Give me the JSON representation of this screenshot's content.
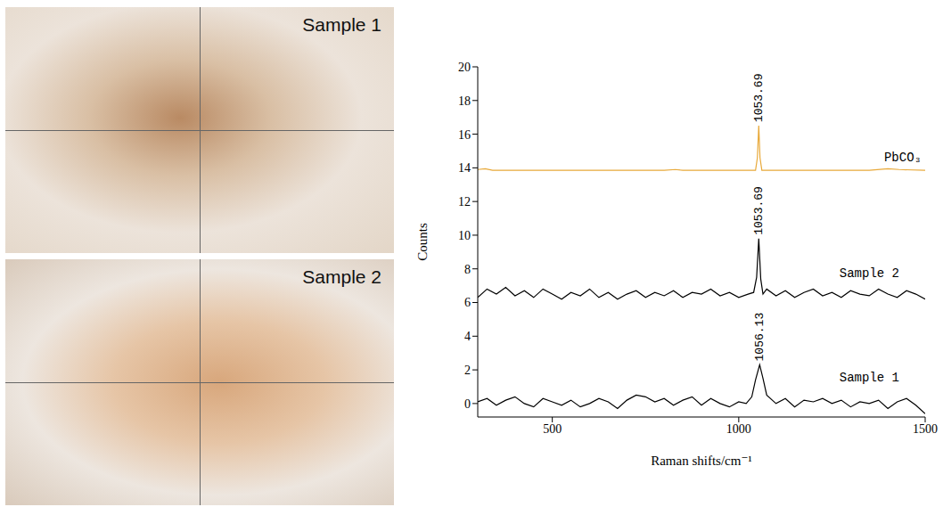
{
  "chart_data": {
    "type": "line",
    "x_label": "Raman shifts/cm⁻¹",
    "y_label": "Counts",
    "xlim": [
      300,
      1500
    ],
    "xticks": [
      500,
      1000,
      1500
    ],
    "ylim": [
      -0.8,
      20
    ],
    "yticks": [
      0,
      2,
      4,
      6,
      8,
      10,
      12,
      14,
      16,
      18,
      20
    ],
    "grid": false,
    "series": [
      {
        "name": "PbCO₃",
        "color": "#e8a93a",
        "label_x": 1390,
        "label_y": 14.6,
        "x": [
          300,
          320,
          340,
          400,
          500,
          600,
          700,
          800,
          830,
          850,
          1000,
          1045,
          1050,
          1053.69,
          1057,
          1062,
          1200,
          1350,
          1400,
          1430,
          1500
        ],
        "values": [
          13.9,
          13.95,
          13.85,
          13.85,
          13.85,
          13.85,
          13.85,
          13.85,
          13.9,
          13.85,
          13.85,
          13.85,
          14.6,
          16.5,
          14.6,
          13.85,
          13.85,
          13.85,
          13.95,
          13.9,
          13.85
        ]
      },
      {
        "name": "Sample 2",
        "color": "#000000",
        "label_x": 1270,
        "label_y": 7.7,
        "x": [
          300,
          325,
          350,
          375,
          400,
          425,
          450,
          475,
          500,
          525,
          550,
          575,
          600,
          625,
          650,
          675,
          700,
          725,
          750,
          775,
          800,
          825,
          850,
          875,
          900,
          925,
          950,
          975,
          1000,
          1025,
          1040,
          1048,
          1053.69,
          1059,
          1065,
          1075,
          1100,
          1125,
          1150,
          1175,
          1200,
          1225,
          1250,
          1275,
          1300,
          1325,
          1350,
          1375,
          1400,
          1425,
          1450,
          1475,
          1500
        ],
        "values": [
          6.3,
          6.8,
          6.5,
          6.9,
          6.4,
          6.7,
          6.3,
          6.8,
          6.5,
          6.2,
          6.6,
          6.4,
          6.8,
          6.3,
          6.6,
          6.2,
          6.5,
          6.7,
          6.3,
          6.6,
          6.4,
          6.7,
          6.3,
          6.6,
          6.5,
          6.8,
          6.4,
          6.6,
          6.3,
          6.5,
          6.6,
          7.5,
          9.8,
          7.4,
          6.5,
          6.8,
          6.4,
          6.7,
          6.3,
          6.6,
          6.8,
          6.4,
          6.6,
          6.3,
          6.7,
          6.5,
          6.4,
          6.8,
          6.5,
          6.3,
          6.7,
          6.5,
          6.2
        ]
      },
      {
        "name": "Sample 1",
        "color": "#000000",
        "label_x": 1270,
        "label_y": 1.5,
        "x": [
          300,
          325,
          350,
          375,
          400,
          425,
          450,
          475,
          500,
          525,
          550,
          575,
          600,
          625,
          650,
          675,
          700,
          725,
          750,
          775,
          800,
          825,
          850,
          875,
          900,
          925,
          950,
          975,
          1000,
          1020,
          1035,
          1045,
          1056.13,
          1065,
          1075,
          1090,
          1100,
          1125,
          1150,
          1175,
          1200,
          1225,
          1250,
          1275,
          1300,
          1325,
          1350,
          1375,
          1400,
          1425,
          1450,
          1475,
          1500
        ],
        "values": [
          0.1,
          0.3,
          -0.1,
          0.2,
          0.4,
          0.0,
          -0.2,
          0.3,
          0.1,
          -0.1,
          0.2,
          -0.2,
          0.0,
          0.3,
          0.1,
          -0.3,
          0.2,
          0.5,
          0.4,
          0.1,
          0.3,
          -0.1,
          0.2,
          0.4,
          -0.1,
          0.3,
          0.0,
          -0.2,
          0.1,
          0.0,
          0.4,
          1.4,
          2.3,
          1.5,
          0.5,
          0.2,
          0.0,
          0.3,
          -0.2,
          0.2,
          0.1,
          0.3,
          0.0,
          0.2,
          -0.2,
          0.1,
          0.0,
          0.2,
          -0.3,
          0.1,
          0.3,
          -0.1,
          -0.6
        ]
      }
    ],
    "annotations": [
      {
        "text": "1053.69",
        "x": 1053.69,
        "y": 16.5
      },
      {
        "text": "1053.69",
        "x": 1053.69,
        "y": 9.8
      },
      {
        "text": "1056.13",
        "x": 1056.13,
        "y": 2.3
      }
    ]
  },
  "photos": [
    {
      "title": "Sample 1"
    },
    {
      "title": "Sample 2"
    }
  ]
}
